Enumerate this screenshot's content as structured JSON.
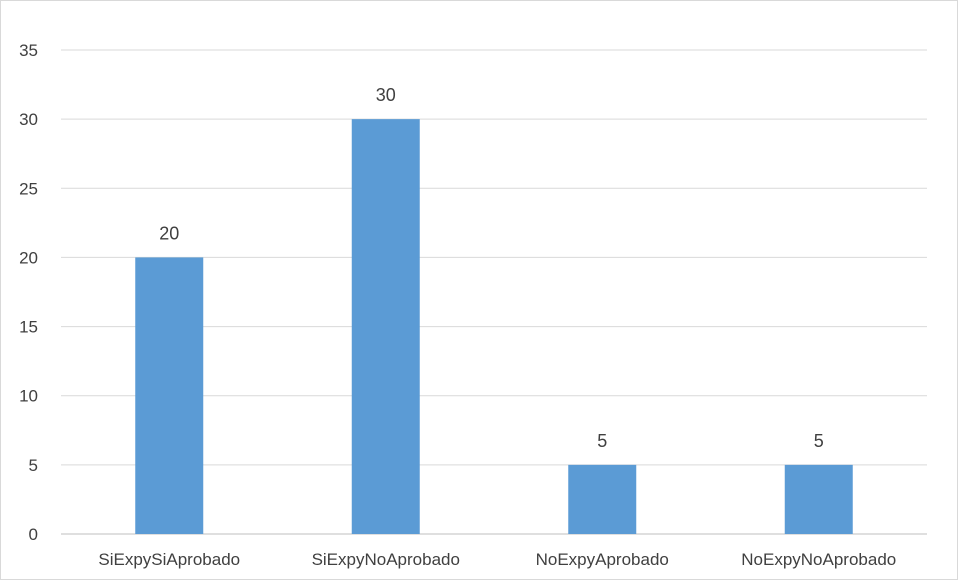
{
  "chart_data": {
    "type": "bar",
    "categories": [
      "SiExpySiAprobado",
      "SiExpyNoAprobado",
      "NoExpyAprobado",
      "NoExpyNoAprobado"
    ],
    "values": [
      20,
      30,
      5,
      5
    ],
    "ylim": [
      0,
      35
    ],
    "yticks": [
      0,
      5,
      10,
      15,
      20,
      25,
      30,
      35
    ],
    "data_labels": true,
    "grid": true,
    "legend": "none",
    "colors": {
      "bar": "#5b9bd5",
      "grid": "#d9d9d9",
      "axis": "#bfbfbf",
      "text": "#404040"
    }
  }
}
